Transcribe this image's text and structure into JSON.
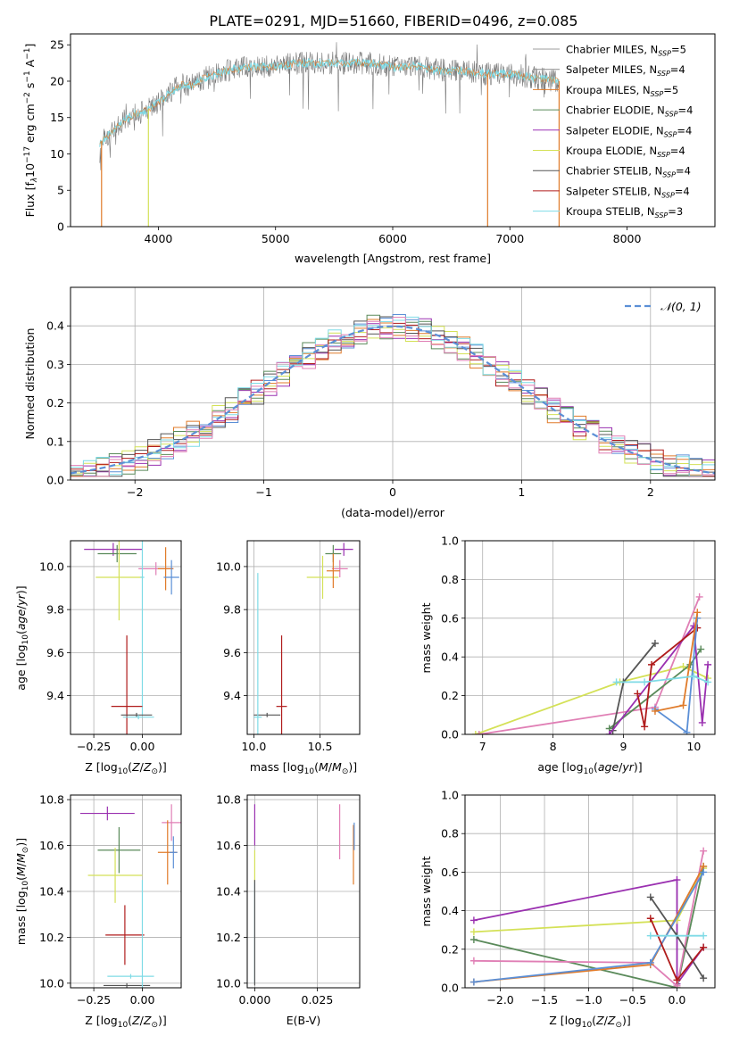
{
  "page": {
    "title": "PLATE=0291, MJD=51660, FIBERID=0496, z=0.085"
  },
  "colors": {
    "Chabrier MILES": "#5b8fd6",
    "Salpeter MILES": "#9a30b0",
    "Kroupa MILES": "#e07b2a",
    "Chabrier ELODIE": "#5a8a5a",
    "Salpeter ELODIE": "#9b30b5",
    "Kroupa ELODIE": "#d4e157",
    "Chabrier STELIB": "#555555",
    "Salpeter STELIB": "#b01c1c",
    "Kroupa STELIB": "#7fdbe6",
    "extra pink": "#e07fb5",
    "normal curve": "#5b8fd6"
  },
  "chart_data": [
    {
      "id": "spectrum",
      "type": "line",
      "xlabel": "wavelength [Angstrom, rest frame]",
      "ylabel": "Flux [f_λ10^{-17} erg cm^{-2} s^{-1} A^{-1}]",
      "ylabel_parts": [
        "Flux [f",
        "λ",
        "10",
        "−17",
        " erg cm",
        "−2",
        " s",
        "−1",
        " A",
        "−1",
        "]"
      ],
      "xlim": [
        3250,
        8750
      ],
      "ylim": [
        0,
        26.5
      ],
      "xticks": [
        4000,
        5000,
        6000,
        7000,
        8000
      ],
      "yticks": [
        0,
        5,
        10,
        15,
        20,
        25
      ],
      "grid": false,
      "legend_position": "right",
      "legend": [
        {
          "label": "Chabrier MILES, N",
          "sub": "SSP",
          "tail": "=5",
          "color": "#9e9e9e"
        },
        {
          "label": "Salpeter MILES, N",
          "sub": "SSP",
          "tail": "=4",
          "color": "#8a8a8a"
        },
        {
          "label": "Kroupa MILES, N",
          "sub": "SSP",
          "tail": "=5",
          "color": "#e07b2a"
        },
        {
          "label": "Chabrier ELODIE, N",
          "sub": "SSP",
          "tail": "=4",
          "color": "#5a8a5a"
        },
        {
          "label": "Salpeter ELODIE, N",
          "sub": "SSP",
          "tail": "=4",
          "color": "#9b30b5"
        },
        {
          "label": "Kroupa ELODIE, N",
          "sub": "SSP",
          "tail": "=4",
          "color": "#d4e157"
        },
        {
          "label": "Chabrier STELIB, N",
          "sub": "SSP",
          "tail": "=4",
          "color": "#555555"
        },
        {
          "label": "Salpeter STELIB, N",
          "sub": "SSP",
          "tail": "=4",
          "color": "#b01c1c"
        },
        {
          "label": "Kroupa STELIB, N",
          "sub": "SSP",
          "tail": "=3",
          "color": "#7fdbe6"
        }
      ],
      "continuum": [
        [
          3500,
          11.5
        ],
        [
          3600,
          13
        ],
        [
          3700,
          14.5
        ],
        [
          3800,
          15.5
        ],
        [
          3900,
          16
        ],
        [
          4000,
          17
        ],
        [
          4100,
          18.5
        ],
        [
          4200,
          19.5
        ],
        [
          4300,
          19.5
        ],
        [
          4400,
          20.5
        ],
        [
          4500,
          21
        ],
        [
          4600,
          21.5
        ],
        [
          4800,
          22
        ],
        [
          5000,
          22
        ],
        [
          5200,
          22.5
        ],
        [
          5400,
          22.5
        ],
        [
          5600,
          22.5
        ],
        [
          5800,
          22.5
        ],
        [
          6000,
          22
        ],
        [
          6200,
          22
        ],
        [
          6400,
          21.5
        ],
        [
          6600,
          21.5
        ],
        [
          6800,
          21
        ],
        [
          7000,
          21
        ],
        [
          7200,
          20.5
        ],
        [
          7400,
          20
        ]
      ],
      "dropouts": [
        {
          "x": 3515,
          "color": "#e07b2a"
        },
        {
          "x": 3915,
          "color": "#d4e157"
        },
        {
          "x": 6810,
          "color": "#e07b2a"
        },
        {
          "x": 7420,
          "color": "#e07b2a"
        }
      ]
    },
    {
      "id": "residuals",
      "type": "histogram",
      "xlabel": "(data-model)/error",
      "ylabel": "Normed distribution",
      "xlim": [
        -2.5,
        2.5
      ],
      "ylim": [
        0,
        0.5
      ],
      "xticks": [
        -2,
        -1,
        0,
        1,
        2
      ],
      "xtick_labels": [
        "−2",
        "−1",
        "0",
        "1",
        "2"
      ],
      "yticks": [
        0.0,
        0.1,
        0.2,
        0.3,
        0.4
      ],
      "ytick_labels": [
        "0.0",
        "0.1",
        "0.2",
        "0.3",
        "0.4"
      ],
      "grid": true,
      "legend_position": "top-right",
      "legend_label": "𝒩(0, 1)",
      "normal_curve": {
        "mean": 0,
        "sigma": 1
      }
    },
    {
      "id": "age-vs-Z",
      "type": "scatter",
      "xlabel": "Z [log10(Z/Z⊙)]",
      "ylabel": "age [log10(age/yr)]",
      "xlim": [
        -0.37,
        0.2
      ],
      "ylim": [
        9.22,
        10.12
      ],
      "xticks": [
        -0.25,
        0.0
      ],
      "xtick_labels": [
        "−0.25",
        "0.00"
      ],
      "yticks": [
        9.4,
        9.6,
        9.8,
        10.0
      ],
      "ytick_labels": [
        "9.4",
        "9.6",
        "9.8",
        "10.0"
      ],
      "grid": true,
      "points": [
        {
          "x": -0.15,
          "y": 10.08,
          "xerr": 0.15,
          "yerr": 0.03,
          "color": "#9a30b0"
        },
        {
          "x": -0.13,
          "y": 10.06,
          "xerr": 0.1,
          "yerr": 0.04,
          "color": "#5a8a5a"
        },
        {
          "x": -0.12,
          "y": 9.95,
          "xerr": 0.12,
          "yerr": 0.2,
          "color": "#d4e157"
        },
        {
          "x": 0.07,
          "y": 9.99,
          "xerr": 0.09,
          "yerr": 0.03,
          "color": "#e07fb5"
        },
        {
          "x": 0.12,
          "y": 9.99,
          "xerr": 0.04,
          "yerr": 0.1,
          "color": "#e07b2a"
        },
        {
          "x": 0.15,
          "y": 9.95,
          "xerr": 0.04,
          "yerr": 0.08,
          "color": "#5b8fd6"
        },
        {
          "x": 0.0,
          "y": 9.95,
          "xerr": 0.01,
          "yerr": 0.64,
          "color": "#7fdbe6"
        },
        {
          "x": -0.08,
          "y": 9.35,
          "xerr": 0.08,
          "yerr": 0.33,
          "color": "#b01c1c"
        },
        {
          "x": -0.03,
          "y": 9.31,
          "xerr": 0.08,
          "yerr": 0.01,
          "color": "#555555"
        },
        {
          "x": -0.02,
          "y": 9.3,
          "xerr": 0.08,
          "yerr": 0.01,
          "color": "#7fdbe6"
        }
      ]
    },
    {
      "id": "age-vs-mass",
      "type": "scatter",
      "xlabel": "mass [log10(M/M⊙)]",
      "ylabel": "",
      "xlim": [
        9.95,
        10.8
      ],
      "ylim": [
        9.22,
        10.12
      ],
      "xticks": [
        10.0,
        10.5
      ],
      "xtick_labels": [
        "10.0",
        "10.5"
      ],
      "yticks": [
        9.4,
        9.6,
        9.8,
        10.0
      ],
      "ytick_labels": [
        "9.4",
        "9.6",
        "9.8",
        "10.0"
      ],
      "grid": true,
      "points": [
        {
          "x": 10.68,
          "y": 10.08,
          "xerr": 0.07,
          "yerr": 0.03,
          "color": "#9a30b0"
        },
        {
          "x": 10.6,
          "y": 10.06,
          "xerr": 0.06,
          "yerr": 0.04,
          "color": "#5a8a5a"
        },
        {
          "x": 10.52,
          "y": 9.95,
          "xerr": 0.12,
          "yerr": 0.1,
          "color": "#d4e157"
        },
        {
          "x": 10.65,
          "y": 9.99,
          "xerr": 0.06,
          "yerr": 0.04,
          "color": "#e07fb5"
        },
        {
          "x": 10.6,
          "y": 9.98,
          "xerr": 0.05,
          "yerr": 0.08,
          "color": "#e07b2a"
        },
        {
          "x": 10.1,
          "y": 9.31,
          "xerr": 0.1,
          "yerr": 0.01,
          "color": "#555555"
        },
        {
          "x": 10.03,
          "y": 9.3,
          "xerr": 0.03,
          "yerr": 0.67,
          "color": "#7fdbe6"
        },
        {
          "x": 10.21,
          "y": 9.35,
          "xerr": 0.04,
          "yerr": 0.33,
          "color": "#b01c1c"
        }
      ]
    },
    {
      "id": "massweight-vs-age",
      "type": "line",
      "xlabel": "age [log10(age/yr)]",
      "ylabel": "mass weight",
      "xlim": [
        6.75,
        10.3
      ],
      "ylim": [
        0,
        1.0
      ],
      "xticks": [
        7,
        8,
        9,
        10
      ],
      "yticks": [
        0.0,
        0.2,
        0.4,
        0.6,
        0.8,
        1.0
      ],
      "ytick_labels": [
        "0.0",
        "0.2",
        "0.4",
        "0.6",
        "0.8",
        "1.0"
      ],
      "grid": true,
      "series": [
        {
          "color": "#d4e157",
          "points": [
            [
              6.9,
              0.0
            ],
            [
              8.95,
              0.27
            ],
            [
              9.85,
              0.35
            ],
            [
              10.2,
              0.29
            ]
          ]
        },
        {
          "color": "#e07fb5",
          "points": [
            [
              6.95,
              0.0
            ],
            [
              9.45,
              0.14
            ],
            [
              10.08,
              0.71
            ]
          ]
        },
        {
          "color": "#5a8a5a",
          "points": [
            [
              8.8,
              0.03
            ],
            [
              9.95,
              0.36
            ],
            [
              10.1,
              0.44
            ]
          ]
        },
        {
          "color": "#555555",
          "points": [
            [
              8.85,
              0.02
            ],
            [
              9.0,
              0.27
            ],
            [
              9.45,
              0.47
            ]
          ]
        },
        {
          "color": "#9a30b0",
          "points": [
            [
              8.8,
              0.0
            ],
            [
              10.0,
              0.56
            ],
            [
              10.12,
              0.06
            ],
            [
              10.2,
              0.36
            ]
          ]
        },
        {
          "color": "#b01c1c",
          "points": [
            [
              9.2,
              0.21
            ],
            [
              9.3,
              0.04
            ],
            [
              9.4,
              0.36
            ],
            [
              10.05,
              0.55
            ]
          ]
        },
        {
          "color": "#5b8fd6",
          "points": [
            [
              9.45,
              0.13
            ],
            [
              9.9,
              0.01
            ],
            [
              10.05,
              0.6
            ]
          ]
        },
        {
          "color": "#e07b2a",
          "points": [
            [
              9.45,
              0.12
            ],
            [
              9.85,
              0.15
            ],
            [
              10.05,
              0.63
            ]
          ]
        },
        {
          "color": "#7fdbe6",
          "points": [
            [
              8.9,
              0.27
            ],
            [
              9.3,
              0.27
            ],
            [
              10.0,
              0.3
            ],
            [
              10.2,
              0.27
            ]
          ]
        }
      ]
    },
    {
      "id": "mass-vs-Z",
      "type": "scatter",
      "xlabel": "Z [log10(Z/Z⊙)]",
      "ylabel": "mass [log10(M/M⊙)]",
      "xlim": [
        -0.37,
        0.2
      ],
      "ylim": [
        9.98,
        10.82
      ],
      "xticks": [
        -0.25,
        0.0
      ],
      "xtick_labels": [
        "−0.25",
        "0.00"
      ],
      "yticks": [
        10.0,
        10.2,
        10.4,
        10.6,
        10.8
      ],
      "ytick_labels": [
        "10.0",
        "10.2",
        "10.4",
        "10.6",
        "10.8"
      ],
      "grid": true,
      "points": [
        {
          "x": -0.18,
          "y": 10.74,
          "xerr": 0.14,
          "yerr": 0.03,
          "color": "#9a30b0"
        },
        {
          "x": -0.12,
          "y": 10.58,
          "xerr": 0.11,
          "yerr": 0.1,
          "color": "#5a8a5a"
        },
        {
          "x": -0.14,
          "y": 10.47,
          "xerr": 0.14,
          "yerr": 0.12,
          "color": "#d4e157"
        },
        {
          "x": 0.15,
          "y": 10.7,
          "xerr": 0.05,
          "yerr": 0.08,
          "color": "#e07fb5"
        },
        {
          "x": 0.13,
          "y": 10.57,
          "xerr": 0.05,
          "yerr": 0.14,
          "color": "#e07b2a"
        },
        {
          "x": 0.16,
          "y": 10.57,
          "xerr": 0.02,
          "yerr": 0.07,
          "color": "#5b8fd6"
        },
        {
          "x": -0.09,
          "y": 10.21,
          "xerr": 0.1,
          "yerr": 0.13,
          "color": "#b01c1c"
        },
        {
          "x": -0.06,
          "y": 10.03,
          "xerr": 0.12,
          "yerr": 0.01,
          "color": "#7fdbe6"
        },
        {
          "x": -0.08,
          "y": 9.99,
          "xerr": 0.12,
          "yerr": 0.01,
          "color": "#555555"
        },
        {
          "x": 0.0,
          "y": 10.0,
          "xerr": 0.0,
          "yerr": 0.45,
          "color": "#7fdbe6"
        }
      ]
    },
    {
      "id": "mass-vs-EBV",
      "type": "scatter",
      "xlabel": "E(B-V)",
      "ylabel": "",
      "xlim": [
        -0.003,
        0.042
      ],
      "ylim": [
        9.98,
        10.82
      ],
      "xticks": [
        0.0,
        0.025
      ],
      "xtick_labels": [
        "0.000",
        "0.025"
      ],
      "yticks": [
        10.0,
        10.2,
        10.4,
        10.6,
        10.8
      ],
      "ytick_labels": [
        "10.0",
        "10.2",
        "10.4",
        "10.6",
        "10.8"
      ],
      "grid": true,
      "points": [
        {
          "x": 0.0,
          "y": 10.69,
          "xerr": 0,
          "yerr": 0.09,
          "color": "#9a30b0"
        },
        {
          "x": 0.0,
          "y": 10.51,
          "xerr": 0,
          "yerr": 0.07,
          "color": "#d4e157"
        },
        {
          "x": 0.0,
          "y": 10.22,
          "xerr": 0,
          "yerr": 0.22,
          "color": "#7fdbe6"
        },
        {
          "x": 0.0,
          "y": 10.22,
          "xerr": 0,
          "yerr": 0.23,
          "color": "#555555"
        },
        {
          "x": 0.034,
          "y": 10.66,
          "xerr": 0,
          "yerr": 0.12,
          "color": "#e07fb5"
        },
        {
          "x": 0.0395,
          "y": 10.56,
          "xerr": 0,
          "yerr": 0.13,
          "color": "#e07b2a"
        },
        {
          "x": 0.0398,
          "y": 10.64,
          "xerr": 0,
          "yerr": 0.06,
          "color": "#5b8fd6"
        }
      ]
    },
    {
      "id": "massweight-vs-Z",
      "type": "line",
      "xlabel": "Z [log10(Z/Z⊙)]",
      "ylabel": "mass weight",
      "xlim": [
        -2.4,
        0.43
      ],
      "ylim": [
        0,
        1.0
      ],
      "xticks": [
        -2.0,
        -1.5,
        -1.0,
        -0.5,
        0.0
      ],
      "xtick_labels": [
        "−2.0",
        "−1.5",
        "−1.0",
        "−0.5",
        "0.0"
      ],
      "yticks": [
        0.0,
        0.2,
        0.4,
        0.6,
        0.8,
        1.0
      ],
      "ytick_labels": [
        "0.0",
        "0.2",
        "0.4",
        "0.6",
        "0.8",
        "1.0"
      ],
      "grid": true,
      "series": [
        {
          "color": "#9a30b0",
          "points": [
            [
              -2.3,
              0.35
            ],
            [
              0.0,
              0.56
            ],
            [
              0.0,
              0.02
            ],
            [
              0.3,
              0.21
            ]
          ]
        },
        {
          "color": "#d4e157",
          "points": [
            [
              -2.3,
              0.29
            ],
            [
              0.0,
              0.35
            ],
            [
              0.3,
              0.62
            ]
          ]
        },
        {
          "color": "#5a8a5a",
          "points": [
            [
              -2.3,
              0.25
            ],
            [
              0.0,
              0.0
            ],
            [
              0.3,
              0.63
            ]
          ]
        },
        {
          "color": "#e07fb5",
          "points": [
            [
              -2.3,
              0.14
            ],
            [
              -0.3,
              0.13
            ],
            [
              0.0,
              0.01
            ],
            [
              0.3,
              0.71
            ]
          ]
        },
        {
          "color": "#e07b2a",
          "points": [
            [
              -2.3,
              0.03
            ],
            [
              -0.3,
              0.12
            ],
            [
              0.3,
              0.63
            ]
          ]
        },
        {
          "color": "#5b8fd6",
          "points": [
            [
              -2.3,
              0.03
            ],
            [
              -0.3,
              0.13
            ],
            [
              0.3,
              0.6
            ]
          ]
        },
        {
          "color": "#555555",
          "points": [
            [
              -0.3,
              0.47
            ],
            [
              0.0,
              0.27
            ],
            [
              0.3,
              0.05
            ]
          ]
        },
        {
          "color": "#b01c1c",
          "points": [
            [
              -0.3,
              0.36
            ],
            [
              0.0,
              0.04
            ],
            [
              0.3,
              0.21
            ]
          ]
        },
        {
          "color": "#7fdbe6",
          "points": [
            [
              -0.3,
              0.27
            ],
            [
              0.3,
              0.27
            ]
          ]
        }
      ]
    }
  ]
}
